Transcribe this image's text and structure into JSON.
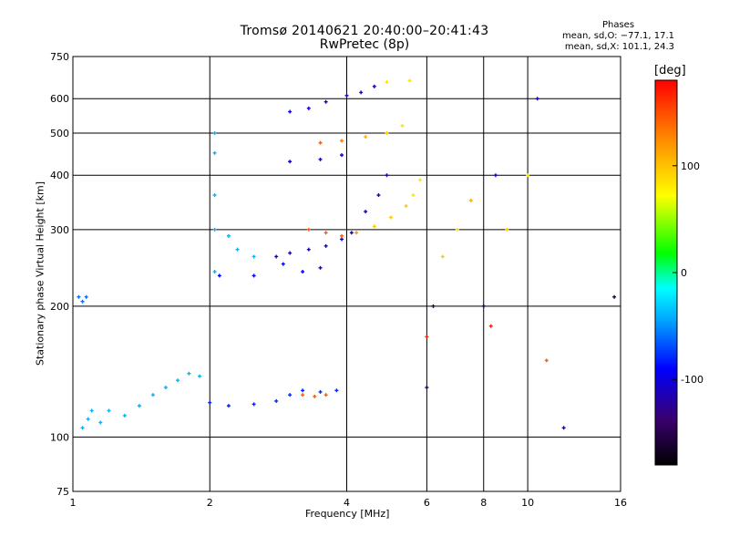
{
  "chart_data": {
    "type": "scatter",
    "title": "Tromsø 20140621 20:40:00–20:41:43",
    "subtitle": "RwPretec (8p)",
    "stats": {
      "heading": "Phases",
      "line1": "mean, sd,O: −77.1, 17.1",
      "line2": "mean, sd,X: 101.1, 24.3"
    },
    "xlabel": "Frequency [MHz]",
    "ylabel": "Stationary phase Virtual Height [km]",
    "xscale": "log",
    "yscale": "log",
    "xlim": [
      1,
      16
    ],
    "ylim": [
      75,
      750
    ],
    "xticks": [
      1,
      2,
      4,
      6,
      8,
      10,
      16
    ],
    "yticks": [
      75,
      100,
      200,
      300,
      400,
      500,
      600,
      750
    ],
    "grid": true,
    "colorbar": {
      "label": "[deg]",
      "range": [
        -180,
        180
      ],
      "ticks": [
        -100,
        0,
        100
      ],
      "colormap": [
        "#000000",
        "#3a0070",
        "#0000ff",
        "#00aaff",
        "#00ffff",
        "#00ff00",
        "#ffff00",
        "#ff8800",
        "#ff0000"
      ]
    },
    "series": [
      {
        "points": [
          [
            1.03,
            210,
            -60
          ],
          [
            1.05,
            205,
            -60
          ],
          [
            1.07,
            210,
            -60
          ],
          [
            1.05,
            105,
            -40
          ],
          [
            1.08,
            110,
            -40
          ],
          [
            1.1,
            115,
            -40
          ],
          [
            1.15,
            108,
            -40
          ],
          [
            1.2,
            115,
            -40
          ],
          [
            1.3,
            112,
            -40
          ],
          [
            1.4,
            118,
            -40
          ],
          [
            1.5,
            125,
            -40
          ],
          [
            1.6,
            130,
            -40
          ],
          [
            1.7,
            135,
            -40
          ],
          [
            1.8,
            140,
            -40
          ],
          [
            1.9,
            138,
            -40
          ],
          [
            2.0,
            120,
            -80
          ],
          [
            2.2,
            118,
            -80
          ],
          [
            2.5,
            119,
            -80
          ],
          [
            2.8,
            121,
            -80
          ],
          [
            3.0,
            125,
            -80
          ],
          [
            3.2,
            128,
            -80
          ],
          [
            3.5,
            127,
            -80
          ],
          [
            3.8,
            128,
            -80
          ],
          [
            3.2,
            125,
            150
          ],
          [
            3.4,
            124,
            150
          ],
          [
            3.6,
            125,
            150
          ],
          [
            2.05,
            240,
            -40
          ],
          [
            2.05,
            300,
            -40
          ],
          [
            2.05,
            360,
            -40
          ],
          [
            2.05,
            450,
            -40
          ],
          [
            2.05,
            500,
            -40
          ],
          [
            2.2,
            290,
            -40
          ],
          [
            2.3,
            270,
            -40
          ],
          [
            2.5,
            260,
            -40
          ],
          [
            2.1,
            235,
            -90
          ],
          [
            2.5,
            235,
            -90
          ],
          [
            2.9,
            250,
            -90
          ],
          [
            3.2,
            240,
            -90
          ],
          [
            3.5,
            245,
            -90
          ],
          [
            2.8,
            260,
            -110
          ],
          [
            3.0,
            265,
            -110
          ],
          [
            3.3,
            270,
            -110
          ],
          [
            3.6,
            275,
            -110
          ],
          [
            3.9,
            285,
            -110
          ],
          [
            4.1,
            295,
            -110
          ],
          [
            4.4,
            330,
            -110
          ],
          [
            4.7,
            360,
            -110
          ],
          [
            4.9,
            400,
            -110
          ],
          [
            3.3,
            300,
            150
          ],
          [
            3.6,
            295,
            150
          ],
          [
            3.9,
            290,
            150
          ],
          [
            4.2,
            295,
            130
          ],
          [
            4.6,
            305,
            110
          ],
          [
            5.0,
            320,
            110
          ],
          [
            5.4,
            340,
            110
          ],
          [
            5.6,
            360,
            100
          ],
          [
            5.8,
            390,
            100
          ],
          [
            3.0,
            430,
            -100
          ],
          [
            3.5,
            435,
            -100
          ],
          [
            3.9,
            445,
            -100
          ],
          [
            3.5,
            475,
            150
          ],
          [
            3.9,
            480,
            140
          ],
          [
            4.4,
            490,
            120
          ],
          [
            4.9,
            500,
            110
          ],
          [
            5.3,
            520,
            100
          ],
          [
            3.0,
            560,
            -100
          ],
          [
            3.3,
            570,
            -100
          ],
          [
            3.6,
            590,
            -100
          ],
          [
            4.0,
            610,
            -110
          ],
          [
            4.3,
            620,
            -110
          ],
          [
            4.6,
            640,
            -110
          ],
          [
            4.9,
            655,
            100
          ],
          [
            5.5,
            660,
            100
          ],
          [
            6.0,
            130,
            -150
          ],
          [
            6.0,
            170,
            170
          ],
          [
            6.2,
            200,
            -150
          ],
          [
            6.5,
            260,
            110
          ],
          [
            7.0,
            300,
            100
          ],
          [
            7.5,
            350,
            120
          ],
          [
            8.0,
            200,
            -150
          ],
          [
            8.3,
            180,
            170
          ],
          [
            8.5,
            400,
            -100
          ],
          [
            9.0,
            300,
            110
          ],
          [
            10.0,
            400,
            100
          ],
          [
            10.5,
            600,
            -100
          ],
          [
            11.0,
            150,
            150
          ],
          [
            12.0,
            105,
            -120
          ],
          [
            15.5,
            210,
            -150
          ]
        ]
      }
    ]
  }
}
